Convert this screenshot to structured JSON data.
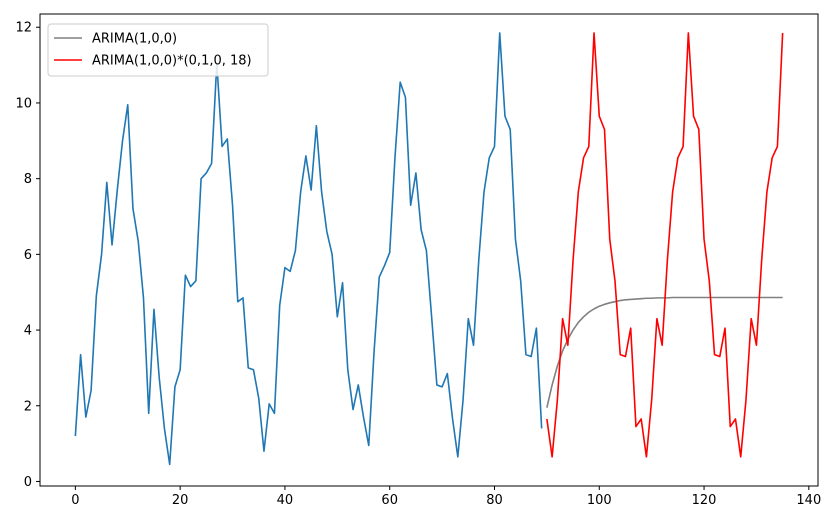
{
  "chart_data": {
    "type": "line",
    "title": "",
    "xlabel": "",
    "ylabel": "",
    "xlim": [
      -6.75,
      141.75
    ],
    "ylim": [
      -0.12,
      12.35
    ],
    "x_ticks": [
      0,
      20,
      40,
      60,
      80,
      100,
      120,
      140
    ],
    "y_ticks": [
      0,
      2,
      4,
      6,
      8,
      10,
      12
    ],
    "legend_position": "upper-left",
    "series": [
      {
        "label_in_legend": false,
        "color": "#1f77b4",
        "x_start": 0,
        "values": [
          1.2,
          3.35,
          1.7,
          2.4,
          4.9,
          6.0,
          7.9,
          6.25,
          7.7,
          9.0,
          9.95,
          7.2,
          6.35,
          4.85,
          1.8,
          4.55,
          2.75,
          1.4,
          0.45,
          2.5,
          2.95,
          5.45,
          5.15,
          5.3,
          8.0,
          8.15,
          8.4,
          11.05,
          8.85,
          9.05,
          7.3,
          4.75,
          4.85,
          3.0,
          2.95,
          2.2,
          0.8,
          2.05,
          1.8,
          4.65,
          5.65,
          5.55,
          6.1,
          7.65,
          8.6,
          7.7,
          9.4,
          7.65,
          6.6,
          6.0,
          4.35,
          5.25,
          2.95,
          1.9,
          2.55,
          1.7,
          0.95,
          3.4,
          5.4,
          5.7,
          6.05,
          8.55,
          10.55,
          10.15,
          7.3,
          8.15,
          6.65,
          6.1,
          4.35,
          2.55,
          2.5,
          2.85,
          1.65,
          0.65,
          2.15,
          4.3,
          3.6,
          5.85,
          7.65,
          8.55,
          8.85,
          11.85,
          9.65,
          9.3,
          6.4,
          5.3,
          3.35,
          3.3,
          4.05,
          1.4
        ]
      },
      {
        "name": "ARIMA(1,0,0)",
        "color": "#808080",
        "x_start": 90,
        "values": [
          1.95,
          2.55,
          3.05,
          3.45,
          3.75,
          4.0,
          4.2,
          4.35,
          4.47,
          4.56,
          4.63,
          4.68,
          4.72,
          4.75,
          4.78,
          4.8,
          4.81,
          4.82,
          4.83,
          4.84,
          4.84,
          4.85,
          4.85,
          4.85,
          4.86,
          4.86,
          4.86,
          4.86,
          4.86,
          4.86,
          4.86,
          4.86,
          4.86,
          4.86,
          4.86,
          4.86,
          4.86,
          4.86,
          4.86,
          4.86,
          4.86,
          4.86,
          4.86,
          4.86,
          4.86,
          4.86
        ]
      },
      {
        "name": "ARIMA(1,0,0)*(0,1,0, 18)",
        "color": "#ff0000",
        "x_start": 90,
        "values": [
          1.65,
          0.65,
          2.15,
          4.3,
          3.6,
          5.85,
          7.65,
          8.55,
          8.85,
          11.85,
          9.65,
          9.3,
          6.4,
          5.3,
          3.35,
          3.3,
          4.05,
          1.45,
          1.65,
          0.65,
          2.15,
          4.3,
          3.6,
          5.85,
          7.65,
          8.55,
          8.85,
          11.85,
          9.65,
          9.3,
          6.4,
          5.3,
          3.35,
          3.3,
          4.05,
          1.45,
          1.65,
          0.65,
          2.15,
          4.3,
          3.6,
          5.85,
          7.65,
          8.55,
          8.85,
          11.85
        ]
      }
    ]
  }
}
